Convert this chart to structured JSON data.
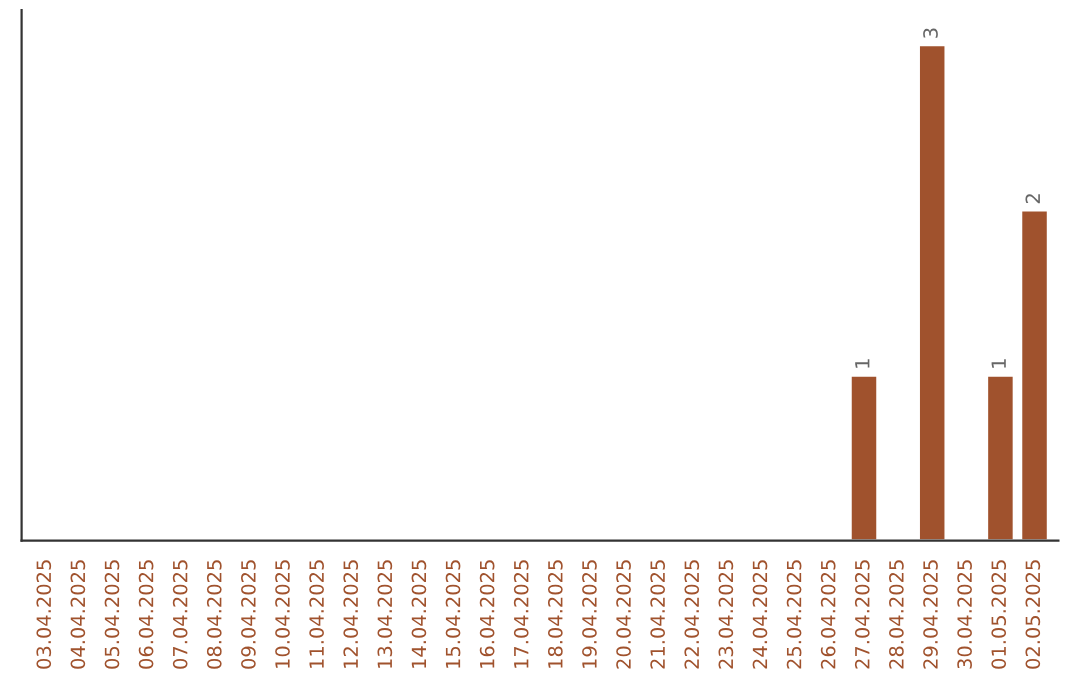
{
  "chart_data": {
    "type": "bar",
    "categories": [
      "03.04.2025",
      "04.04.2025",
      "05.04.2025",
      "06.04.2025",
      "07.04.2025",
      "08.04.2025",
      "09.04.2025",
      "10.04.2025",
      "11.04.2025",
      "12.04.2025",
      "13.04.2025",
      "14.04.2025",
      "15.04.2025",
      "16.04.2025",
      "17.04.2025",
      "18.04.2025",
      "19.04.2025",
      "20.04.2025",
      "21.04.2025",
      "22.04.2025",
      "23.04.2025",
      "24.04.2025",
      "25.04.2025",
      "26.04.2025",
      "27.04.2025",
      "28.04.2025",
      "29.04.2025",
      "30.04.2025",
      "01.05.2025",
      "02.05.2025"
    ],
    "values": [
      null,
      null,
      null,
      null,
      null,
      null,
      null,
      null,
      null,
      null,
      null,
      null,
      null,
      null,
      null,
      null,
      null,
      null,
      null,
      null,
      null,
      null,
      null,
      null,
      1,
      null,
      3,
      null,
      1,
      2
    ],
    "value_labels": [
      null,
      null,
      null,
      null,
      null,
      null,
      null,
      null,
      null,
      null,
      null,
      null,
      null,
      null,
      null,
      null,
      null,
      null,
      null,
      null,
      null,
      null,
      null,
      null,
      "1",
      null,
      "3",
      null,
      "1",
      "2"
    ],
    "color": "#a0522d",
    "tick_labels": "x",
    "grid": false,
    "legend": false
  }
}
